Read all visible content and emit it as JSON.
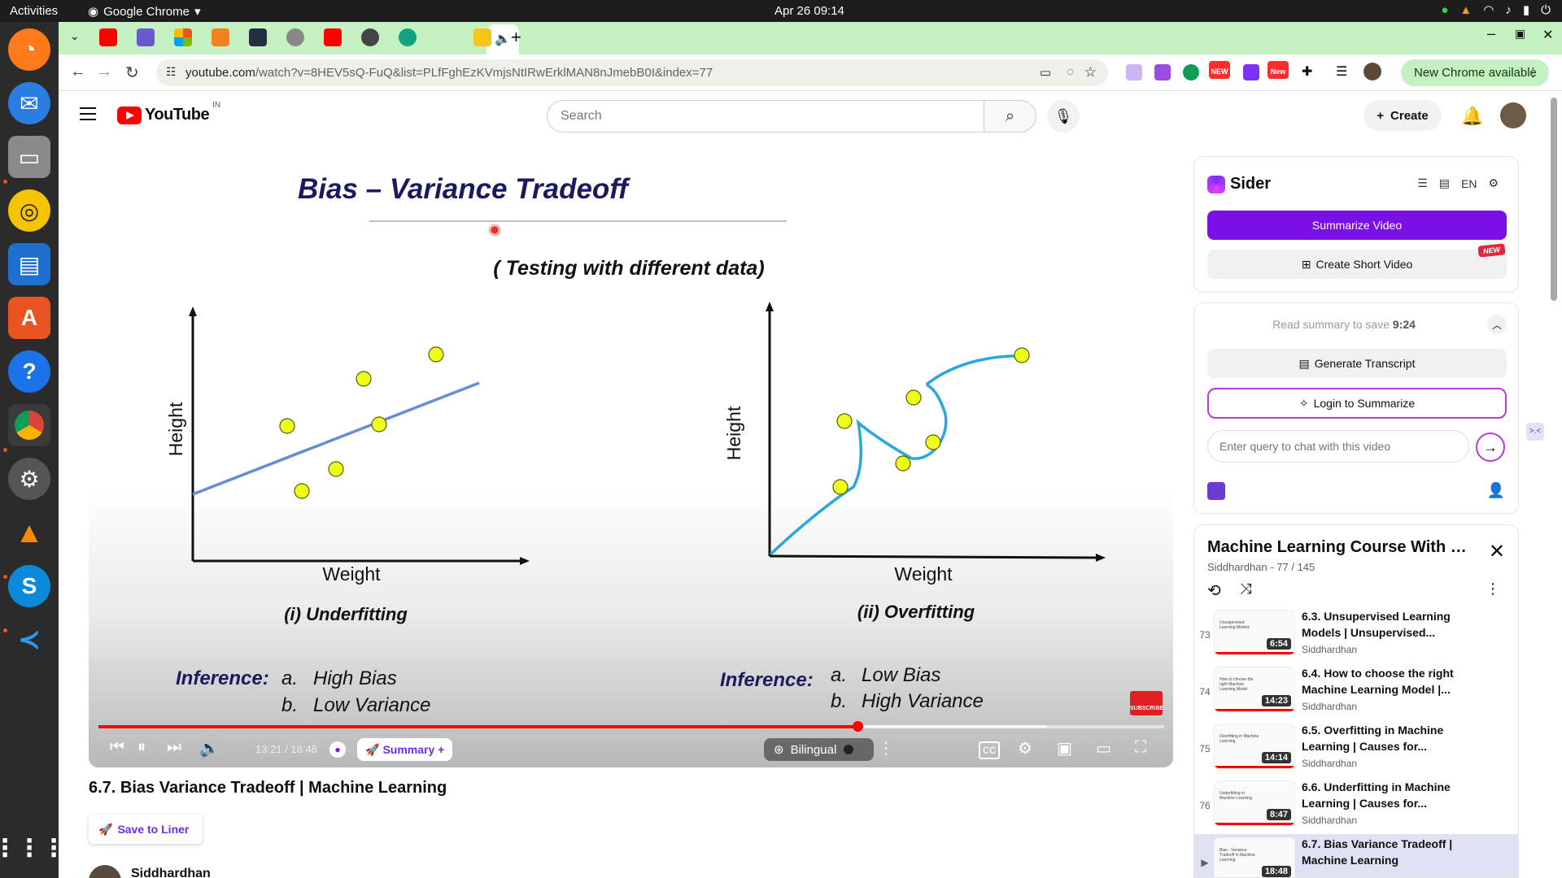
{
  "system": {
    "activities": "Activities",
    "app_name": "Google Chrome",
    "clock": "Apr 26  09:14"
  },
  "browser": {
    "url_host": "youtube.com",
    "url_path": "/watch?v=8HEV5sQ-FuQ&list=PLfFghEzKVmjsNtIRwErklMAN8nJmebB0I&index=77",
    "new_chrome": "New Chrome available",
    "ext_badge_1": "NEW",
    "ext_badge_2": "New"
  },
  "youtube": {
    "logo_text": "YouTube",
    "region": "IN",
    "search_placeholder": "Search",
    "create_label": "Create"
  },
  "slide": {
    "title": "Bias – Variance Tradeoff",
    "subtitle": "( Testing with different data)",
    "left": {
      "ylabel": "Height",
      "xlabel": "Weight",
      "caption": "(i) Underfitting",
      "inference_label": "Inference:",
      "inference_a_letter": "a.",
      "inference_a": "High Bias",
      "inference_b_letter": "b.",
      "inference_b": "Low Variance"
    },
    "right": {
      "ylabel": "Height",
      "xlabel": "Weight",
      "caption": "(ii) Overfitting",
      "inference_label": "Inference:",
      "inference_a_letter": "a.",
      "inference_a": "Low Bias",
      "inference_b_letter": "b.",
      "inference_b": "High Variance"
    },
    "subscribe": "SUBSCRIBE"
  },
  "player": {
    "time": "13:21 / 18:48",
    "played_fraction": 0.712,
    "buffered_fraction": 0.89,
    "summary_label": "Summary +",
    "bilingual_label": "Bilingual"
  },
  "video": {
    "title": "6.7. Bias Variance Tradeoff | Machine Learning",
    "save_to_liner": "Save to Liner",
    "channel": "Siddhardhan"
  },
  "sider": {
    "brand": "Sider",
    "lang": "EN",
    "summarize_video": "Summarize Video",
    "create_short_video": "Create Short Video",
    "new_tag": "NEW",
    "save_note_prefix": "Read summary to save",
    "save_note_time": "9:24",
    "generate_transcript": "Generate Transcript",
    "login_to_summarize": "Login to Summarize",
    "chat_placeholder": "Enter query to chat with this video"
  },
  "playlist": {
    "title": "Machine Learning Course With Python",
    "subtitle": "Siddhardhan - 77 / 145",
    "items": [
      {
        "num": "73",
        "title": "6.3. Unsupervised Learning Models | Unsupervised...",
        "channel": "Siddhardhan",
        "duration": "6:54",
        "thumb_text": "Unsupervised Learning Models"
      },
      {
        "num": "74",
        "title": "6.4. How to choose the right Machine Learning Model |...",
        "channel": "Siddhardhan",
        "duration": "14:23",
        "thumb_text": "How to choose the right Machine Learning Model"
      },
      {
        "num": "75",
        "title": "6.5. Overfitting in Machine Learning | Causes for...",
        "channel": "Siddhardhan",
        "duration": "14:14",
        "thumb_text": "Overfitting in Machine Learning"
      },
      {
        "num": "76",
        "title": "6.6. Underfitting in Machine Learning | Causes for...",
        "channel": "Siddhardhan",
        "duration": "8:47",
        "thumb_text": "Underfitting in Machine Learning"
      },
      {
        "num": "▶",
        "title": "6.7. Bias Variance Tradeoff | Machine Learning",
        "channel": "",
        "duration": "18:48",
        "thumb_text": "Bias - Variance Tradeoff in Machine Learning"
      }
    ]
  }
}
